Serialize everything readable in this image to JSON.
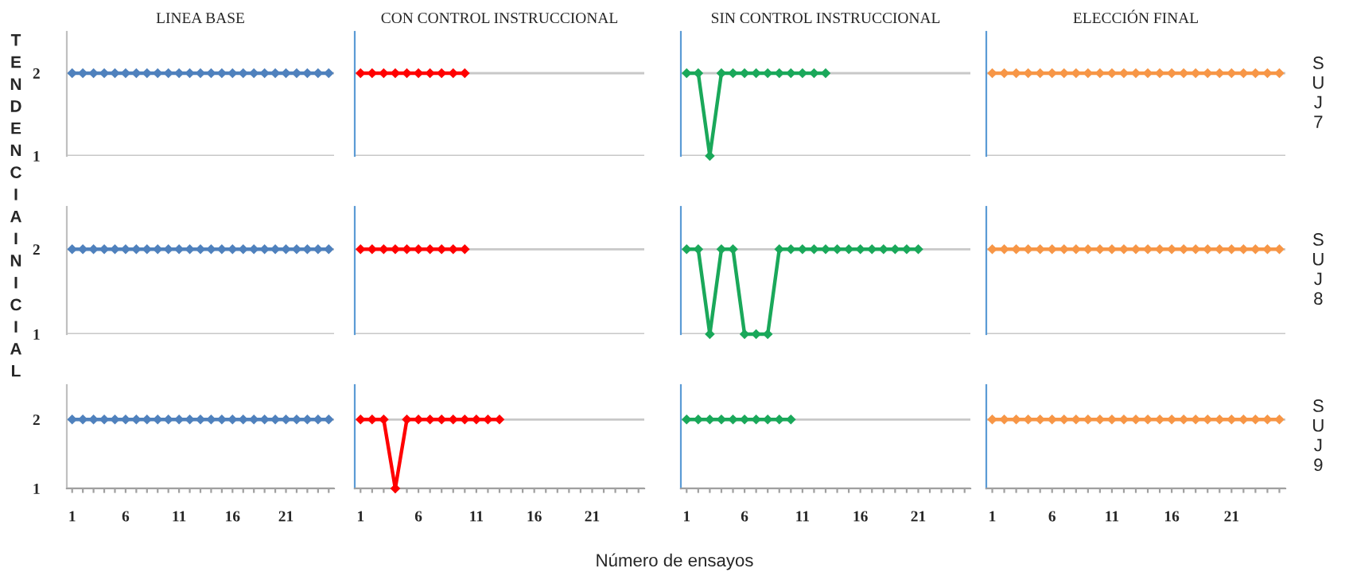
{
  "chart_data": [
    {
      "type": "line",
      "title": "LINEA BASE",
      "x": [
        1,
        2,
        3,
        4,
        5,
        6,
        7,
        8,
        9,
        10,
        11,
        12,
        13,
        14,
        15,
        16,
        17,
        18,
        19,
        20,
        21,
        22,
        23,
        24,
        25
      ],
      "series": [
        {
          "color": "#4f81bd",
          "values": [
            2,
            2,
            2,
            2,
            2,
            2,
            2,
            2,
            2,
            2,
            2,
            2,
            2,
            2,
            2,
            2,
            2,
            2,
            2,
            2,
            2,
            2,
            2,
            2,
            2
          ]
        }
      ],
      "xlim": [
        0.5,
        25.5
      ],
      "ylim": [
        1,
        2.5
      ],
      "yticks": [
        1,
        2
      ],
      "grid": "y",
      "marker": "diamond",
      "tick_labels": "y"
    },
    {
      "type": "line",
      "title": "CON CONTROL INSTRUCCIONAL",
      "x": [
        1,
        2,
        3,
        4,
        5,
        6,
        7,
        8,
        9,
        10
      ],
      "series": [
        {
          "color": "#ff0000",
          "values": [
            2,
            2,
            2,
            2,
            2,
            2,
            2,
            2,
            2,
            2
          ]
        }
      ],
      "xlim": [
        0.5,
        25.5
      ],
      "ylim": [
        1,
        2.5
      ],
      "yticks": [
        1,
        2
      ],
      "grid": "y",
      "marker": "diamond",
      "tick_labels": false
    },
    {
      "type": "line",
      "title": "SIN CONTROL INSTRUCCIONAL",
      "x": [
        1,
        2,
        3,
        4,
        5,
        6,
        7,
        8,
        9,
        10,
        11,
        12,
        13
      ],
      "series": [
        {
          "color": "#1aa85a",
          "values": [
            2,
            2,
            1,
            2,
            2,
            2,
            2,
            2,
            2,
            2,
            2,
            2,
            2
          ]
        }
      ],
      "xlim": [
        0.5,
        25.5
      ],
      "ylim": [
        1,
        2.5
      ],
      "yticks": [
        1,
        2
      ],
      "grid": "y",
      "marker": "diamond",
      "tick_labels": false
    },
    {
      "type": "line",
      "title": "ELECCIÓN FINAL",
      "x": [
        1,
        2,
        3,
        4,
        5,
        6,
        7,
        8,
        9,
        10,
        11,
        12,
        13,
        14,
        15,
        16,
        17,
        18,
        19,
        20,
        21,
        22,
        23,
        24,
        25
      ],
      "series": [
        {
          "color": "#f79646",
          "values": [
            2,
            2,
            2,
            2,
            2,
            2,
            2,
            2,
            2,
            2,
            2,
            2,
            2,
            2,
            2,
            2,
            2,
            2,
            2,
            2,
            2,
            2,
            2,
            2,
            2
          ]
        }
      ],
      "xlim": [
        0.5,
        25.5
      ],
      "ylim": [
        1,
        2.5
      ],
      "yticks": [
        1,
        2
      ],
      "grid": "y",
      "marker": "diamond",
      "tick_labels": false,
      "annotations": [
        "SUJ 7"
      ]
    },
    {
      "type": "line",
      "ylabel": "TENDENCIA INICIAL",
      "x": [
        1,
        2,
        3,
        4,
        5,
        6,
        7,
        8,
        9,
        10,
        11,
        12,
        13,
        14,
        15,
        16,
        17,
        18,
        19,
        20,
        21,
        22,
        23,
        24,
        25
      ],
      "series": [
        {
          "color": "#4f81bd",
          "values": [
            2,
            2,
            2,
            2,
            2,
            2,
            2,
            2,
            2,
            2,
            2,
            2,
            2,
            2,
            2,
            2,
            2,
            2,
            2,
            2,
            2,
            2,
            2,
            2,
            2
          ]
        }
      ],
      "xlim": [
        0.5,
        25.5
      ],
      "ylim": [
        1,
        2.5
      ],
      "yticks": [
        1,
        2
      ],
      "grid": "y",
      "marker": "diamond",
      "tick_labels": "y"
    },
    {
      "type": "line",
      "x": [
        1,
        2,
        3,
        4,
        5,
        6,
        7,
        8,
        9,
        10
      ],
      "series": [
        {
          "color": "#ff0000",
          "values": [
            2,
            2,
            2,
            2,
            2,
            2,
            2,
            2,
            2,
            2
          ]
        }
      ],
      "xlim": [
        0.5,
        25.5
      ],
      "ylim": [
        1,
        2.5
      ],
      "yticks": [
        1,
        2
      ],
      "grid": "y",
      "marker": "diamond",
      "tick_labels": false
    },
    {
      "type": "line",
      "x": [
        1,
        2,
        3,
        4,
        5,
        6,
        7,
        8,
        9,
        10,
        11,
        12,
        13,
        14,
        15,
        16,
        17,
        18,
        19,
        20,
        21
      ],
      "series": [
        {
          "color": "#1aa85a",
          "values": [
            2,
            2,
            1,
            2,
            2,
            1,
            1,
            1,
            2,
            2,
            2,
            2,
            2,
            2,
            2,
            2,
            2,
            2,
            2,
            2,
            2
          ]
        }
      ],
      "xlim": [
        0.5,
        25.5
      ],
      "ylim": [
        1,
        2.5
      ],
      "yticks": [
        1,
        2
      ],
      "grid": "y",
      "marker": "diamond",
      "tick_labels": false
    },
    {
      "type": "line",
      "x": [
        1,
        2,
        3,
        4,
        5,
        6,
        7,
        8,
        9,
        10,
        11,
        12,
        13,
        14,
        15,
        16,
        17,
        18,
        19,
        20,
        21,
        22,
        23,
        24,
        25
      ],
      "series": [
        {
          "color": "#f79646",
          "values": [
            2,
            2,
            2,
            2,
            2,
            2,
            2,
            2,
            2,
            2,
            2,
            2,
            2,
            2,
            2,
            2,
            2,
            2,
            2,
            2,
            2,
            2,
            2,
            2,
            2
          ]
        }
      ],
      "xlim": [
        0.5,
        25.5
      ],
      "ylim": [
        1,
        2.5
      ],
      "yticks": [
        1,
        2
      ],
      "grid": "y",
      "marker": "diamond",
      "tick_labels": false,
      "annotations": [
        "SUJ 8"
      ]
    },
    {
      "type": "line",
      "x": [
        1,
        2,
        3,
        4,
        5,
        6,
        7,
        8,
        9,
        10,
        11,
        12,
        13,
        14,
        15,
        16,
        17,
        18,
        19,
        20,
        21,
        22,
        23,
        24,
        25
      ],
      "series": [
        {
          "color": "#4f81bd",
          "values": [
            2,
            2,
            2,
            2,
            2,
            2,
            2,
            2,
            2,
            2,
            2,
            2,
            2,
            2,
            2,
            2,
            2,
            2,
            2,
            2,
            2,
            2,
            2,
            2,
            2
          ]
        }
      ],
      "xlim": [
        0.5,
        25.5
      ],
      "ylim": [
        1,
        2.5
      ],
      "yticks": [
        1,
        2
      ],
      "xticks": [
        1,
        {
          "value": 2,
          "label": null
        },
        {
          "value": 3,
          "label": null
        },
        {
          "value": 4,
          "label": null
        },
        {
          "value": 5,
          "label": null
        },
        6,
        {
          "value": 7,
          "label": null
        },
        {
          "value": 8,
          "label": null
        },
        {
          "value": 9,
          "label": null
        },
        {
          "value": 10,
          "label": null
        },
        11,
        {
          "value": 12,
          "label": null
        },
        {
          "value": 13,
          "label": null
        },
        {
          "value": 14,
          "label": null
        },
        {
          "value": 15,
          "label": null
        },
        16,
        {
          "value": 17,
          "label": null
        },
        {
          "value": 18,
          "label": null
        },
        {
          "value": 19,
          "label": null
        },
        {
          "value": 20,
          "label": null
        },
        21,
        {
          "value": 22,
          "label": null
        },
        {
          "value": 23,
          "label": null
        },
        {
          "value": 24,
          "label": null
        },
        {
          "value": 25,
          "label": null
        }
      ],
      "grid": "y",
      "marker": "diamond"
    },
    {
      "type": "line",
      "xlabel": "Número de ensayos",
      "x": [
        1,
        2,
        3,
        4,
        5,
        6,
        7,
        8,
        9,
        10,
        11,
        12,
        13
      ],
      "series": [
        {
          "color": "#ff0000",
          "values": [
            2,
            2,
            2,
            1,
            2,
            2,
            2,
            2,
            2,
            2,
            2,
            2,
            2
          ]
        }
      ],
      "xlim": [
        0.5,
        25.5
      ],
      "ylim": [
        1,
        2.5
      ],
      "yticks": [
        1,
        2
      ],
      "xticks": [
        1,
        {
          "value": 2,
          "label": null
        },
        {
          "value": 3,
          "label": null
        },
        {
          "value": 4,
          "label": null
        },
        {
          "value": 5,
          "label": null
        },
        6,
        {
          "value": 7,
          "label": null
        },
        {
          "value": 8,
          "label": null
        },
        {
          "value": 9,
          "label": null
        },
        {
          "value": 10,
          "label": null
        },
        11,
        {
          "value": 12,
          "label": null
        },
        {
          "value": 13,
          "label": null
        },
        {
          "value": 14,
          "label": null
        },
        {
          "value": 15,
          "label": null
        },
        16,
        {
          "value": 17,
          "label": null
        },
        {
          "value": 18,
          "label": null
        },
        {
          "value": 19,
          "label": null
        },
        {
          "value": 20,
          "label": null
        },
        21,
        {
          "value": 22,
          "label": null
        },
        {
          "value": 23,
          "label": null
        },
        {
          "value": 24,
          "label": null
        },
        {
          "value": 25,
          "label": null
        }
      ],
      "grid": "y",
      "marker": "diamond",
      "tick_labels": "x"
    },
    {
      "type": "line",
      "x": [
        1,
        2,
        3,
        4,
        5,
        6,
        7,
        8,
        9,
        10
      ],
      "series": [
        {
          "color": "#1aa85a",
          "values": [
            2,
            2,
            2,
            2,
            2,
            2,
            2,
            2,
            2,
            2
          ]
        }
      ],
      "xlim": [
        0.5,
        25.5
      ],
      "ylim": [
        1,
        2.5
      ],
      "yticks": [
        1,
        2
      ],
      "xticks": [
        1,
        {
          "value": 2,
          "label": null
        },
        {
          "value": 3,
          "label": null
        },
        {
          "value": 4,
          "label": null
        },
        {
          "value": 5,
          "label": null
        },
        6,
        {
          "value": 7,
          "label": null
        },
        {
          "value": 8,
          "label": null
        },
        {
          "value": 9,
          "label": null
        },
        {
          "value": 10,
          "label": null
        },
        11,
        {
          "value": 12,
          "label": null
        },
        {
          "value": 13,
          "label": null
        },
        {
          "value": 14,
          "label": null
        },
        {
          "value": 15,
          "label": null
        },
        16,
        {
          "value": 17,
          "label": null
        },
        {
          "value": 18,
          "label": null
        },
        {
          "value": 19,
          "label": null
        },
        {
          "value": 20,
          "label": null
        },
        21,
        {
          "value": 22,
          "label": null
        },
        {
          "value": 23,
          "label": null
        },
        {
          "value": 24,
          "label": null
        },
        {
          "value": 25,
          "label": null
        }
      ],
      "grid": "y",
      "marker": "diamond",
      "tick_labels": "x"
    },
    {
      "type": "line",
      "x": [
        1,
        2,
        3,
        4,
        5,
        6,
        7,
        8,
        9,
        10,
        11,
        12,
        13,
        14,
        15,
        16,
        17,
        18,
        19,
        20,
        21,
        22,
        23,
        24,
        25
      ],
      "series": [
        {
          "color": "#f79646",
          "values": [
            2,
            2,
            2,
            2,
            2,
            2,
            2,
            2,
            2,
            2,
            2,
            2,
            2,
            2,
            2,
            2,
            2,
            2,
            2,
            2,
            2,
            2,
            2,
            2,
            2
          ]
        }
      ],
      "xlim": [
        0.5,
        25.5
      ],
      "yticks": [
        1,
        2
      ],
      "xticks": [
        1,
        {
          "value": 2,
          "label": null
        },
        {
          "value": 3,
          "label": null
        },
        {
          "value": 4,
          "label": null
        },
        {
          "value": 5,
          "label": null
        },
        6,
        {
          "value": 7,
          "label": null
        },
        {
          "value": 8,
          "label": null
        },
        {
          "value": 9,
          "label": null
        },
        {
          "value": 10,
          "label": null
        },
        11,
        {
          "value": 12,
          "label": null
        },
        {
          "value": 13,
          "label": null
        },
        {
          "value": 14,
          "label": null
        },
        {
          "value": 15,
          "label": null
        },
        16,
        {
          "value": 17,
          "label": null
        },
        {
          "value": 18,
          "label": null
        },
        {
          "value": 19,
          "label": null
        },
        {
          "value": 20,
          "label": null
        },
        21,
        {
          "value": 22,
          "label": null
        },
        {
          "value": 23,
          "label": null
        },
        {
          "value": 24,
          "label": null
        },
        {
          "value": 25,
          "label": null
        }
      ],
      "grid": "y",
      "marker": "diamond",
      "tick_labels": "x",
      "annotations": [
        "SUJ 9"
      ],
      "ylim": [
        1,
        2.5
      ]
    }
  ]
}
